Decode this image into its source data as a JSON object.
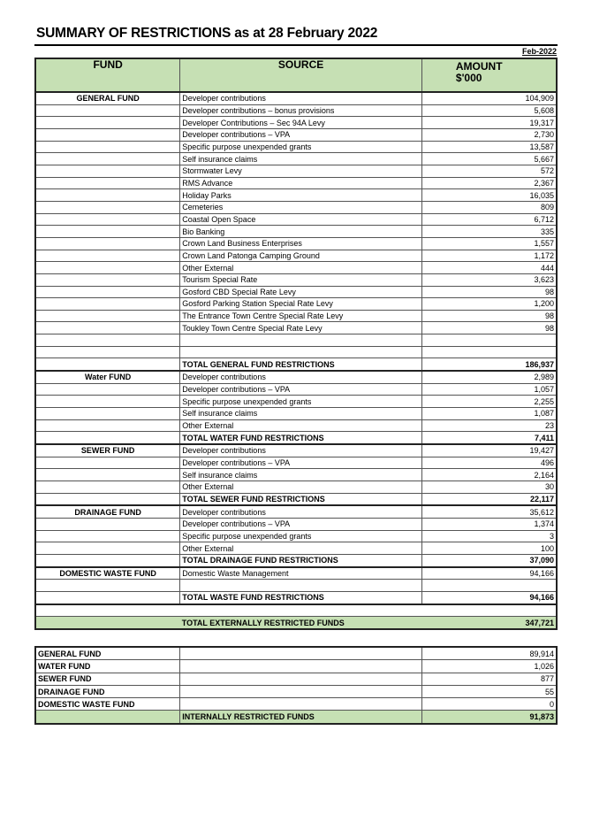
{
  "title": "SUMMARY OF RESTRICTIONS  as at 28 February 2022",
  "period": "Feb-2022",
  "headers": {
    "fund": "FUND",
    "source": "SOURCE",
    "amount_line1": "AMOUNT",
    "amount_line2": "$'000"
  },
  "sections": [
    {
      "fund": "GENERAL FUND",
      "items": [
        {
          "source": "Developer contributions",
          "amount": "104,909"
        },
        {
          "source": "Developer contributions – bonus provisions",
          "amount": "5,608"
        },
        {
          "source": "Developer Contributions – Sec 94A Levy",
          "amount": "19,317"
        },
        {
          "source": "Developer contributions – VPA",
          "amount": "2,730"
        },
        {
          "source": "Specific purpose unexpended grants",
          "amount": "13,587"
        },
        {
          "source": "Self insurance claims",
          "amount": "5,667"
        },
        {
          "source": "Stormwater Levy",
          "amount": "572"
        },
        {
          "source": "RMS Advance",
          "amount": "2,367"
        },
        {
          "source": "Holiday Parks",
          "amount": "16,035"
        },
        {
          "source": "Cemeteries",
          "amount": "809"
        },
        {
          "source": "Coastal Open Space",
          "amount": "6,712"
        },
        {
          "source": "Bio Banking",
          "amount": "335"
        },
        {
          "source": "Crown Land Business Enterprises",
          "amount": "1,557"
        },
        {
          "source": "Crown Land Patonga Camping Ground",
          "amount": "1,172"
        },
        {
          "source": "Other External",
          "amount": "444"
        },
        {
          "source": "Tourism Special Rate",
          "amount": "3,623"
        },
        {
          "source": "Gosford CBD Special Rate Levy",
          "amount": "98"
        },
        {
          "source": "Gosford Parking Station Special Rate Levy",
          "amount": "1,200"
        },
        {
          "source": "The Entrance Town Centre Special Rate Levy",
          "amount": "98"
        },
        {
          "source": "Toukley Town Centre Special Rate Levy",
          "amount": "98"
        }
      ],
      "total_label": "TOTAL GENERAL FUND RESTRICTIONS",
      "total": "186,937"
    },
    {
      "fund": "Water FUND",
      "items": [
        {
          "source": "Developer contributions",
          "amount": "2,989"
        },
        {
          "source": "Developer contributions – VPA",
          "amount": "1,057"
        },
        {
          "source": "Specific purpose unexpended grants",
          "amount": "2,255"
        },
        {
          "source": "Self insurance claims",
          "amount": "1,087"
        },
        {
          "source": "Other External",
          "amount": "23"
        }
      ],
      "total_label": "TOTAL WATER FUND RESTRICTIONS",
      "total": "7,411"
    },
    {
      "fund": "SEWER FUND",
      "items": [
        {
          "source": "Developer contributions",
          "amount": "19,427"
        },
        {
          "source": "Developer contributions – VPA",
          "amount": "496"
        },
        {
          "source": "Self insurance claims",
          "amount": "2,164"
        },
        {
          "source": "Other External",
          "amount": "30"
        }
      ],
      "total_label": "TOTAL SEWER FUND RESTRICTIONS",
      "total": "22,117"
    },
    {
      "fund": "DRAINAGE FUND",
      "items": [
        {
          "source": "Developer contributions",
          "amount": "35,612"
        },
        {
          "source": "Developer contributions – VPA",
          "amount": "1,374"
        },
        {
          "source": "Specific purpose unexpended grants",
          "amount": "3"
        },
        {
          "source": "Other External",
          "amount": "100"
        }
      ],
      "total_label": "TOTAL DRAINAGE FUND RESTRICTIONS",
      "total": "37,090"
    },
    {
      "fund": "DOMESTIC WASTE FUND",
      "items": [
        {
          "source": "Domestic Waste Management",
          "amount": "94,166"
        }
      ],
      "total_label": "TOTAL WASTE FUND RESTRICTIONS",
      "total": "94,166"
    }
  ],
  "external_total": {
    "label": "TOTAL EXTERNALLY RESTRICTED FUNDS",
    "amount": "347,721"
  },
  "internal": {
    "rows": [
      {
        "fund": "GENERAL FUND",
        "amount": "89,914"
      },
      {
        "fund": "WATER FUND",
        "amount": "1,026"
      },
      {
        "fund": "SEWER FUND",
        "amount": "877"
      },
      {
        "fund": "DRAINAGE FUND",
        "amount": "55"
      },
      {
        "fund": "DOMESTIC WASTE FUND",
        "amount": "0"
      }
    ],
    "total_label": "INTERNALLY RESTRICTED FUNDS",
    "total": "91,873"
  },
  "colors": {
    "header_green": "#c6e0b4"
  }
}
